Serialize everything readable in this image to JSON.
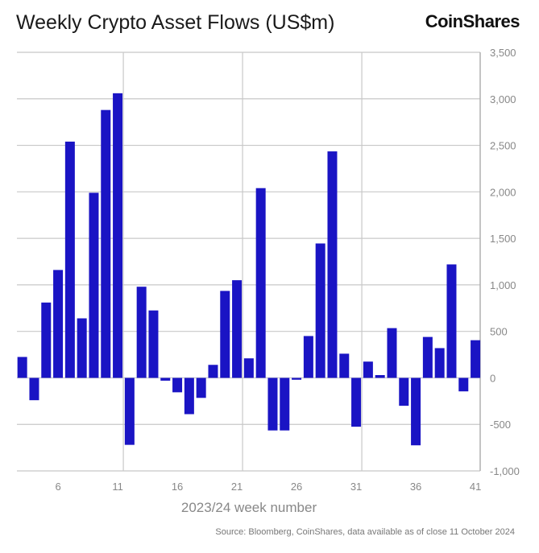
{
  "header": {
    "title": "Weekly Crypto Asset Flows (US$m)",
    "logo": "CoinShares"
  },
  "footer": {
    "source": "Source: Bloomberg, CoinShares, data available as of close 11 October 2024"
  },
  "chart_data": {
    "type": "bar",
    "title": "Weekly Crypto Asset Flows (US$m)",
    "xlabel": "2023/24 week number",
    "ylabel": "",
    "color": "#1a14c4",
    "y_axis_position": "right",
    "grid": true,
    "ylim": [
      -1000,
      3500
    ],
    "yticks": [
      -1000,
      -500,
      0,
      500,
      1000,
      1500,
      2000,
      2500,
      3000,
      3500
    ],
    "ytick_labels": [
      "-1,000",
      "-500",
      "0",
      "500",
      "1,000",
      "1,500",
      "2,000",
      "2,500",
      "3,000",
      "3,500"
    ],
    "xticks": [
      6,
      11,
      16,
      21,
      26,
      31,
      36,
      41
    ],
    "x": [
      3,
      4,
      5,
      6,
      7,
      8,
      9,
      10,
      11,
      12,
      13,
      14,
      15,
      16,
      17,
      18,
      19,
      20,
      21,
      22,
      23,
      24,
      25,
      26,
      27,
      28,
      29,
      30,
      31,
      32,
      33,
      34,
      35,
      36,
      37,
      38,
      39,
      40,
      41
    ],
    "values": [
      225,
      -240,
      810,
      1160,
      2540,
      640,
      1990,
      2880,
      3060,
      -720,
      980,
      725,
      -30,
      -155,
      -390,
      -215,
      140,
      935,
      1050,
      210,
      2040,
      -565,
      -565,
      -20,
      450,
      1445,
      2435,
      260,
      -525,
      175,
      30,
      535,
      -300,
      -725,
      440,
      320,
      1220,
      -145,
      405
    ]
  }
}
